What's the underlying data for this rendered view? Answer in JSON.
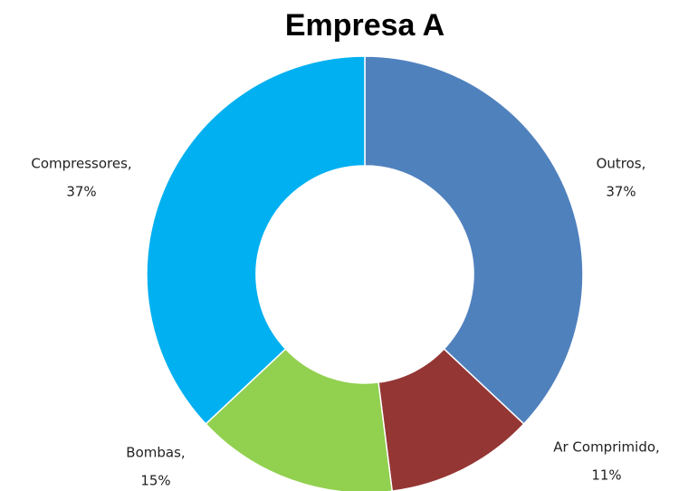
{
  "chart_data": {
    "type": "donut",
    "title": "Empresa A",
    "categories": [
      "Outros,",
      "Ar Comprimido,",
      "Bombas,",
      "Compressores,"
    ],
    "values": [
      37,
      11,
      15,
      37
    ],
    "value_labels": [
      "37%",
      "11%",
      "15%",
      "37%"
    ],
    "colors": [
      "#4f81bd",
      "#943634",
      "#92d050",
      "#00b0f0"
    ]
  }
}
